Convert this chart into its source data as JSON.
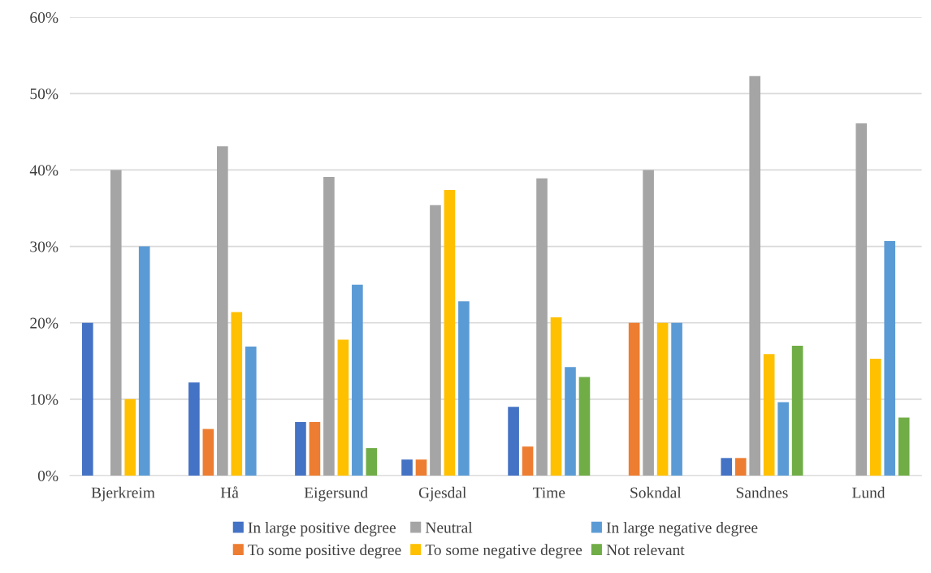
{
  "chart_data": {
    "type": "bar",
    "categories": [
      "Bjerkreim",
      "Hå",
      "Eigersund",
      "Gjesdal",
      "Time",
      "Sokndal",
      "Sandnes",
      "Lund"
    ],
    "series": [
      {
        "name": "In large positive degree",
        "color": "#4472c4",
        "values": [
          20,
          12.2,
          7.0,
          2.1,
          9.0,
          0,
          2.3,
          0
        ]
      },
      {
        "name": "To some positive degree",
        "color": "#ed7d31",
        "values": [
          0,
          6.1,
          7.0,
          2.1,
          3.8,
          20,
          2.3,
          0
        ]
      },
      {
        "name": "Neutral",
        "color": "#a5a5a5",
        "values": [
          40,
          43.1,
          39.1,
          35.4,
          38.9,
          40,
          52.3,
          46.1
        ]
      },
      {
        "name": "To some negative degree",
        "color": "#ffc000",
        "values": [
          10,
          21.4,
          17.8,
          37.4,
          20.7,
          20,
          15.9,
          15.3
        ]
      },
      {
        "name": "In large negative degree",
        "color": "#5b9bd5",
        "values": [
          30,
          16.9,
          25.0,
          22.8,
          14.2,
          20,
          9.6,
          30.7
        ]
      },
      {
        "name": "Not relevant",
        "color": "#70ad47",
        "values": [
          0,
          0,
          3.6,
          0,
          12.9,
          0,
          17.0,
          7.6
        ]
      }
    ],
    "ylim": [
      0,
      60
    ],
    "yticks": [
      {
        "value": 0,
        "label": "0%"
      },
      {
        "value": 10,
        "label": "10%"
      },
      {
        "value": 20,
        "label": "20%"
      },
      {
        "value": 30,
        "label": "30%"
      },
      {
        "value": 40,
        "label": "40%"
      },
      {
        "value": 50,
        "label": "50%"
      },
      {
        "value": 60,
        "label": "60%"
      }
    ],
    "grid": "y",
    "legend": "bottom"
  }
}
